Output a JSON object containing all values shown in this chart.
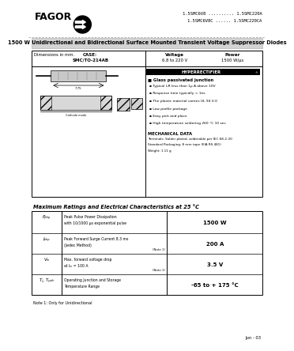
{
  "bg_color": "#ffffff",
  "header_logo_text": "FAGOR",
  "part_numbers_line1": "1.5SMC6V8 .......... 1.5SMC220A",
  "part_numbers_line2": "1.5SMC6V8C ...... 1.5SMC220CA",
  "title_bar_text": "1500 W Unidirectional and Bidirectional Surface Mounted Transient Voltage Suppressor Diodes",
  "case_label": "CASE:",
  "case_value": "SMC/TO-214AB",
  "voltage_label": "Voltage",
  "voltage_value": "6.8 to 220 V",
  "power_label": "Power",
  "power_value": "1500 W/µs",
  "features_title": "Glass passivated junction",
  "features": [
    "Typical I₂R less than 1μ A above 10V",
    "Response time typically < 1ns",
    "The plastic material carries UL 94 V-0",
    "Low profile package",
    "Easy pick and place",
    "High temperature soldering 260 °C 10 sec"
  ],
  "mech_title": "MECHANICAL DATA",
  "mech_lines": [
    "Terminals: Solder plated, solderable per IEC 68-2-20",
    "Standard Packaging: 8 mm tape (EIA RS 481)",
    "Weight: 1.11 g"
  ],
  "table_title": "Maximum Ratings and Electrical Characteristics at 25 °C",
  "table_rows": [
    {
      "symbol": "Pₚₕₚ",
      "description": "Peak Pulse Power Dissipation\nwith 10/1000 μs exponential pulse",
      "note": "",
      "value": "1500 W"
    },
    {
      "symbol": "Iₚₕₚ",
      "description": "Peak Forward Surge Current 8.3 ms\n(Jedec Method)",
      "note": "(Note 1)",
      "value": "200 A"
    },
    {
      "symbol": "Vₘ",
      "description": "Max. forward voltage drop\nat Iₘ = 100 A",
      "note": "(Note 1)",
      "value": "3.5 V"
    },
    {
      "symbol": "Tⱼ, Tₚₚₕ",
      "description": "Operating Junction and Storage\nTemperature Range",
      "note": "",
      "value": "-65 to + 175 °C"
    }
  ],
  "note": "Note 1: Only for Unidirectional",
  "date": "Jun - 03",
  "title_bar_color": "#d3d3d3",
  "border_color": "#000000",
  "text_color": "#000000"
}
